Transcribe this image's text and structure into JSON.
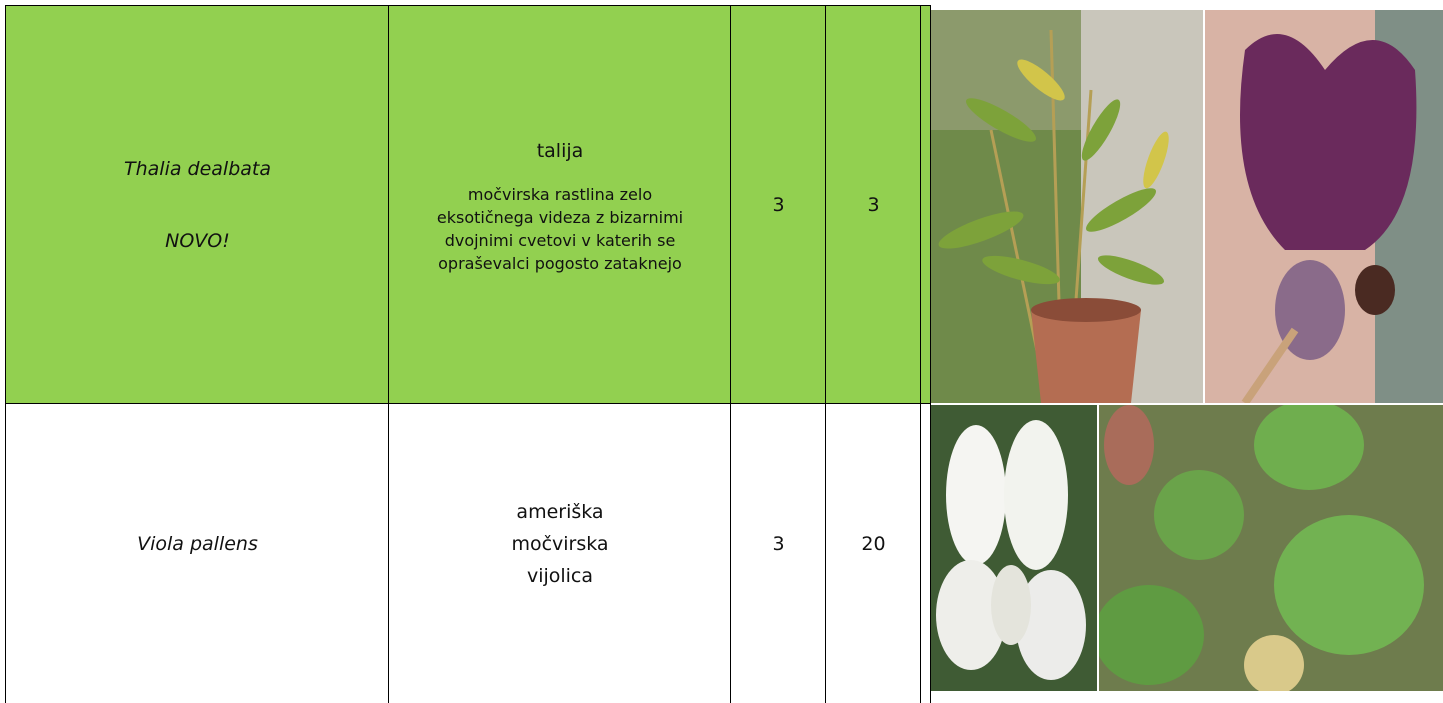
{
  "table": {
    "rows": [
      {
        "latin": "Thalia dealbata",
        "note": "NOVO!",
        "common": "talija",
        "description": "močvirska rastlina zelo eksotičnega videza z bizarnimi dvojnimi cvetovi v katerih se opraševalci pogosto zataknejo",
        "col3": 3,
        "col4": 3
      },
      {
        "latin": "Viola pallens",
        "common": "ameriška močvirska vijolica",
        "col3": 3,
        "col4": 20
      }
    ]
  }
}
